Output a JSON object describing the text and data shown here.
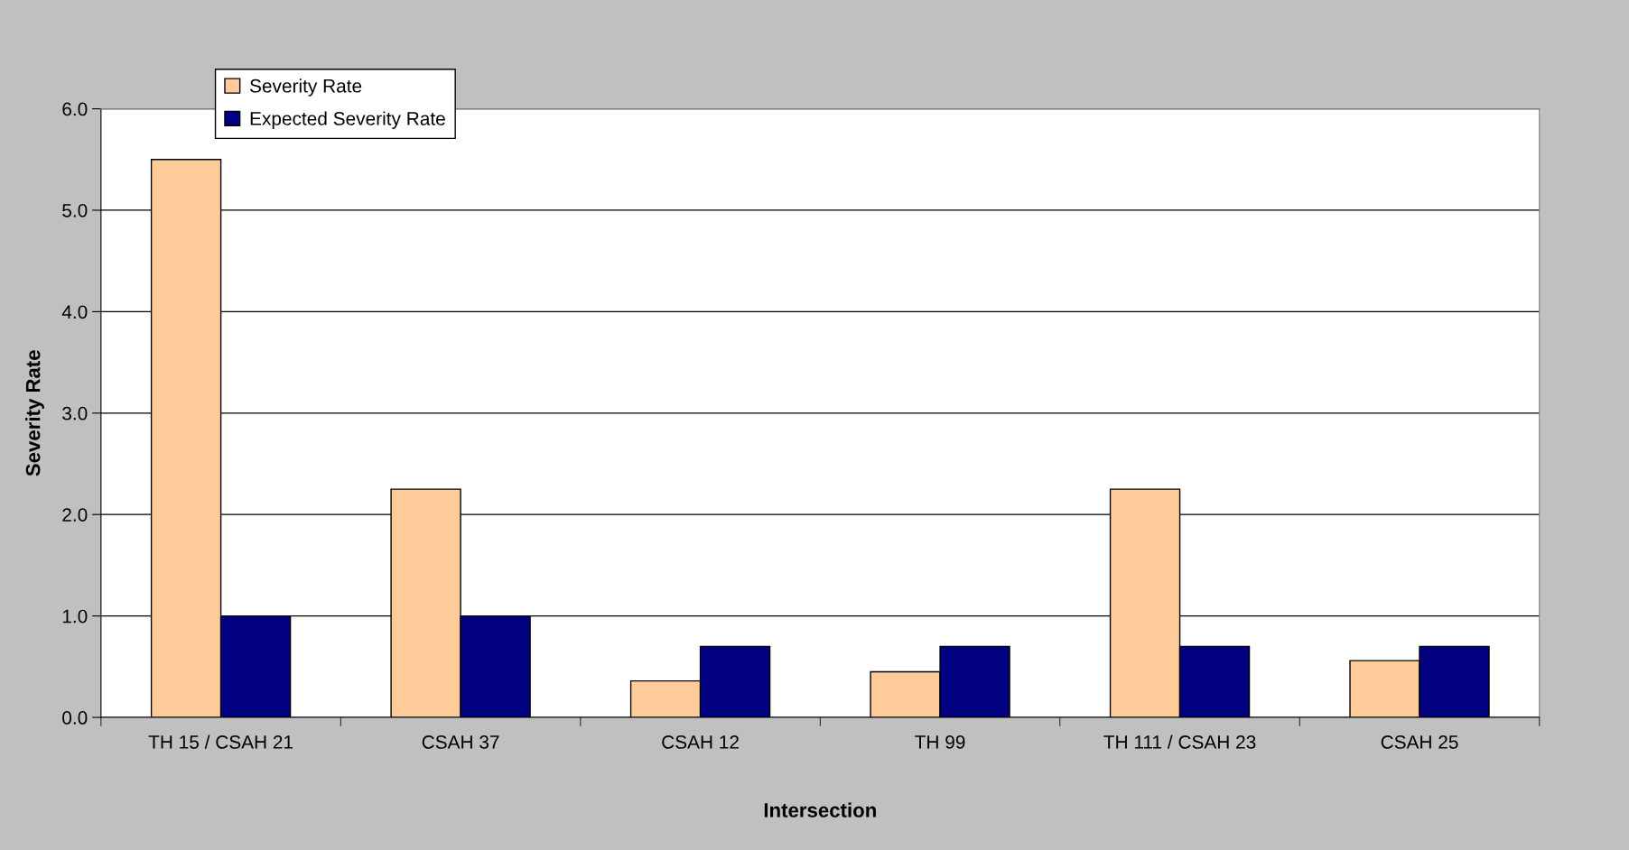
{
  "chart_data": {
    "type": "bar",
    "xlabel": "Intersection",
    "ylabel": "Severity Rate",
    "categories": [
      "TH 15 / CSAH 21",
      "CSAH 37",
      "CSAH 12",
      "TH 99",
      "TH 111 / CSAH 23",
      "CSAH 25"
    ],
    "series": [
      {
        "name": "Severity Rate",
        "color": "#ffcc99",
        "values": [
          5.5,
          2.25,
          0.36,
          0.45,
          2.25,
          0.56
        ]
      },
      {
        "name": "Expected Severity Rate",
        "color": "#000080",
        "values": [
          1.0,
          1.0,
          0.7,
          0.7,
          0.7,
          0.7
        ]
      }
    ],
    "ylim": [
      0,
      6
    ],
    "yticks": [
      {
        "value": 0,
        "label": "0.0"
      },
      {
        "value": 1,
        "label": "1.0"
      },
      {
        "value": 2,
        "label": "2.0"
      },
      {
        "value": 3,
        "label": "3.0"
      },
      {
        "value": 4,
        "label": "4.0"
      },
      {
        "value": 5,
        "label": "5.0"
      },
      {
        "value": 6,
        "label": "6.0"
      }
    ],
    "grid": "y",
    "legend": "top left"
  }
}
